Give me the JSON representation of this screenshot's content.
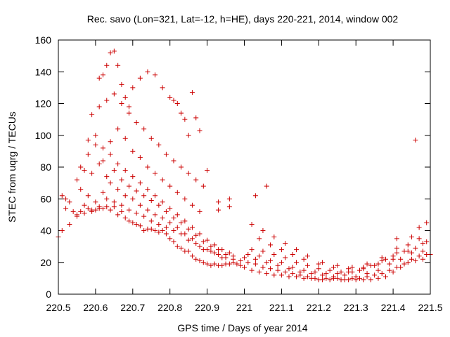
{
  "chart_data": {
    "type": "scatter",
    "title": "Rec. savo (Lon=321, Lat=-12, h=HE), days 220-221, 2014, window 002",
    "xlabel": "GPS time / Days of year 2014",
    "ylabel": "STEC from uqrg / TECUs",
    "xlim": [
      220.5,
      221.5
    ],
    "ylim": [
      0,
      160
    ],
    "xticks": [
      220.5,
      220.6,
      220.7,
      220.8,
      220.9,
      221,
      221.1,
      221.2,
      221.3,
      221.4,
      221.5
    ],
    "xtick_labels": [
      "220.5",
      "220.6",
      "220.7",
      "220.8",
      "220.9",
      "221",
      "221.1",
      "221.2",
      "221.3",
      "221.4",
      "221.5"
    ],
    "yticks": [
      0,
      20,
      40,
      60,
      80,
      100,
      120,
      140,
      160
    ],
    "ytick_labels": [
      "0",
      "20",
      "40",
      "60",
      "80",
      "100",
      "120",
      "140",
      "160"
    ],
    "marker": "+",
    "color": "#cc0000",
    "series": [
      {
        "name": "STEC",
        "x": [
          220.5,
          220.51,
          220.52,
          220.53,
          220.54,
          220.55,
          220.56,
          220.57,
          220.58,
          220.59,
          220.6,
          220.61,
          220.62,
          220.63,
          220.64,
          220.65,
          220.66,
          220.67,
          220.68,
          220.69,
          220.7,
          220.71,
          220.72,
          220.73,
          220.74,
          220.75,
          220.76,
          220.77,
          220.78,
          220.79,
          220.8,
          220.81,
          220.82,
          220.83,
          220.84,
          220.85,
          220.86,
          220.87,
          220.88,
          220.89,
          220.9,
          220.91,
          220.92,
          220.93,
          220.94,
          220.95,
          220.96,
          220.97,
          220.98,
          220.99,
          221.0,
          221.02,
          221.04,
          221.06,
          221.08,
          221.1,
          221.12,
          221.14,
          221.16,
          221.18,
          221.2,
          221.22,
          221.24,
          221.26,
          221.28,
          221.3,
          221.32,
          221.34,
          221.36,
          221.38,
          221.4,
          221.42,
          221.44,
          221.46,
          221.48,
          221.5,
          220.51,
          220.53,
          220.55,
          220.57,
          220.59,
          220.61,
          220.63,
          220.65,
          220.67,
          220.69,
          220.71,
          220.73,
          220.75,
          220.77,
          220.79,
          220.81,
          220.83,
          220.85,
          220.87,
          220.89,
          220.91,
          220.93,
          220.95,
          220.97,
          220.99,
          221.01,
          221.03,
          221.05,
          221.07,
          221.09,
          221.11,
          221.13,
          221.15,
          221.17,
          221.19,
          221.21,
          221.23,
          221.25,
          221.27,
          221.29,
          221.31,
          221.33,
          221.35,
          221.37,
          221.39,
          221.41,
          221.43,
          221.45,
          221.47,
          221.49,
          220.52,
          220.56,
          220.58,
          220.6,
          220.62,
          220.64,
          220.66,
          220.68,
          220.7,
          220.72,
          220.74,
          220.76,
          220.78,
          220.8,
          220.82,
          220.84,
          220.86,
          220.88,
          220.9,
          220.92,
          220.94,
          221.0,
          221.03,
          221.06,
          221.09,
          221.12,
          221.15,
          221.18,
          221.21,
          221.24,
          221.27,
          221.3,
          221.33,
          221.36,
          221.39,
          221.42,
          221.45,
          221.48,
          220.55,
          220.57,
          220.59,
          220.61,
          220.63,
          220.65,
          220.67,
          220.69,
          220.71,
          220.73,
          220.75,
          220.77,
          220.79,
          220.81,
          220.83,
          220.85,
          220.87,
          220.89,
          220.91,
          220.93,
          220.95,
          220.97,
          221.01,
          221.04,
          221.07,
          221.1,
          221.13,
          221.16,
          221.19,
          221.22,
          221.25,
          221.28,
          221.31,
          221.34,
          221.37,
          221.4,
          221.43,
          221.46,
          221.49,
          220.56,
          220.58,
          220.6,
          220.62,
          220.64,
          220.66,
          220.68,
          220.7,
          220.72,
          220.74,
          220.76,
          220.78,
          220.8,
          220.82,
          220.84,
          220.86,
          220.88,
          220.9,
          220.92,
          220.94,
          220.96,
          221.02,
          221.05,
          221.08,
          221.11,
          221.14,
          221.17,
          221.2,
          221.23,
          221.26,
          221.29,
          221.32,
          221.35,
          221.38,
          221.41,
          221.44,
          221.47,
          220.58,
          220.6,
          220.62,
          220.64,
          220.66,
          220.68,
          220.7,
          220.72,
          220.74,
          220.76,
          220.78,
          220.8,
          220.82,
          220.84,
          220.86,
          220.88,
          221.04,
          221.07,
          221.1,
          221.13,
          221.16,
          221.2,
          221.24,
          221.28,
          221.32,
          221.36,
          221.4,
          221.44,
          221.48,
          220.59,
          220.61,
          220.63,
          220.65,
          220.67,
          220.69,
          220.71,
          220.73,
          220.75,
          220.77,
          220.79,
          220.81,
          220.83,
          220.85,
          220.87,
          220.89,
          220.93,
          220.96,
          221.02,
          221.05,
          221.08,
          221.11,
          221.14,
          221.17,
          221.21,
          221.25,
          221.29,
          221.33,
          221.37,
          221.41,
          221.45,
          221.47,
          221.49,
          220.61,
          220.62,
          220.63,
          220.64,
          220.65,
          220.66,
          220.67,
          220.68,
          220.69,
          220.7,
          220.72,
          220.74,
          220.76,
          220.78,
          220.8,
          220.81,
          220.82,
          220.83,
          220.84,
          220.85,
          220.86,
          220.87,
          220.88,
          220.9,
          220.93,
          220.96,
          221.03,
          221.06,
          221.41,
          221.46
        ],
        "y": [
          36,
          62,
          54,
          58,
          52,
          50,
          52,
          51,
          54,
          52,
          53,
          54,
          54,
          55,
          53,
          55,
          50,
          52,
          48,
          46,
          45,
          44,
          43,
          40,
          41,
          41,
          40,
          39,
          40,
          38,
          35,
          33,
          30,
          29,
          27,
          27,
          24,
          22,
          21,
          20,
          19,
          18,
          19,
          18,
          18,
          19,
          19,
          20,
          19,
          18,
          17,
          15,
          14,
          13,
          12,
          12,
          11,
          11,
          10,
          10,
          9,
          10,
          10,
          9,
          9,
          9,
          9,
          9,
          10,
          11,
          14,
          17,
          20,
          21,
          22,
          25,
          40,
          44,
          49,
          56,
          53,
          55,
          60,
          58,
          56,
          53,
          51,
          49,
          46,
          44,
          42,
          40,
          38,
          34,
          32,
          28,
          27,
          25,
          23,
          22,
          21,
          20,
          19,
          17,
          16,
          15,
          14,
          13,
          12,
          11,
          10,
          9,
          9,
          10,
          9,
          10,
          10,
          11,
          12,
          13,
          15,
          17,
          19,
          22,
          24,
          25,
          60,
          66,
          62,
          58,
          64,
          70,
          66,
          62,
          60,
          56,
          53,
          50,
          48,
          45,
          42,
          38,
          35,
          30,
          28,
          26,
          23,
          23,
          22,
          20,
          18,
          16,
          14,
          13,
          12,
          11,
          12,
          11,
          13,
          15,
          19,
          22,
          26,
          27,
          72,
          78,
          76,
          82,
          74,
          78,
          72,
          68,
          65,
          62,
          59,
          56,
          52,
          48,
          45,
          41,
          37,
          33,
          30,
          28,
          25,
          24,
          25,
          24,
          21,
          20,
          17,
          15,
          14,
          13,
          13,
          14,
          15,
          18,
          21,
          24,
          27,
          29,
          33,
          80,
          88,
          94,
          84,
          88,
          82,
          78,
          74,
          70,
          66,
          62,
          58,
          54,
          50,
          46,
          42,
          38,
          34,
          31,
          28,
          26,
          28,
          27,
          25,
          23,
          20,
          18,
          16,
          15,
          14,
          14,
          16,
          18,
          22,
          26,
          31,
          35,
          97,
          100,
          92,
          96,
          104,
          98,
          90,
          86,
          80,
          76,
          72,
          68,
          64,
          60,
          56,
          52,
          35,
          31,
          28,
          25,
          22,
          19,
          17,
          16,
          17,
          19,
          22,
          27,
          32,
          113,
          118,
          122,
          126,
          120,
          114,
          108,
          104,
          98,
          94,
          88,
          84,
          80,
          76,
          72,
          68,
          58,
          55,
          44,
          40,
          36,
          32,
          28,
          24,
          20,
          18,
          17,
          19,
          23,
          29,
          36,
          42,
          45,
          136,
          138,
          144,
          152,
          153,
          144,
          132,
          124,
          118,
          130,
          136,
          140,
          138,
          130,
          124,
          122,
          120,
          114,
          110,
          100,
          127,
          111,
          103,
          78,
          53,
          60,
          62,
          68,
          35,
          97
        ]
      }
    ]
  }
}
